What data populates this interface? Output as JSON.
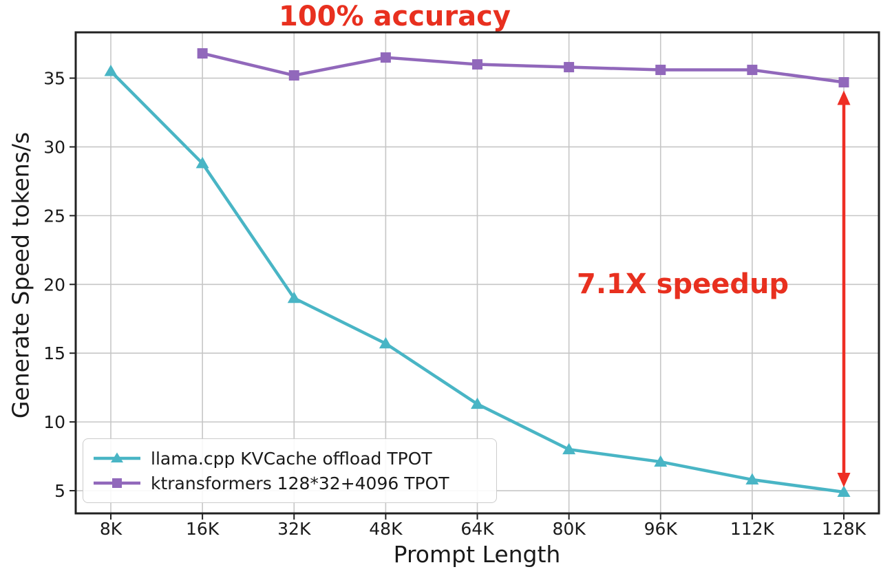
{
  "chart_data": {
    "type": "line",
    "title": "100% accuracy",
    "xlabel": "Prompt Length",
    "ylabel": "Generate Speed tokens/s",
    "categories": [
      "8K",
      "16K",
      "32K",
      "48K",
      "64K",
      "80K",
      "96K",
      "112K",
      "128K"
    ],
    "yticks": [
      5,
      10,
      15,
      20,
      25,
      30,
      35
    ],
    "ylim": [
      3.35,
      38.33
    ],
    "grid": true,
    "legend_position": "lower left",
    "series": [
      {
        "name": "llama.cpp KVCache offload TPOT",
        "color": "#49b5c5",
        "marker": "triangle",
        "values": [
          35.5,
          28.8,
          19.0,
          15.7,
          11.3,
          8.0,
          7.1,
          5.8,
          4.9
        ]
      },
      {
        "name": "ktransformers 128*32+4096 TPOT",
        "color": "#9168bb",
        "marker": "square",
        "values": [
          null,
          36.8,
          35.2,
          36.5,
          36.0,
          35.8,
          35.6,
          35.6,
          34.7
        ]
      }
    ],
    "annotations": [
      {
        "text": "100% accuracy",
        "color": "#e8301f",
        "position": "top-center"
      },
      {
        "text": "7.1X speedup",
        "color": "#e8301f",
        "position": "right-middle"
      },
      {
        "type": "double-arrow",
        "x_category": "128K",
        "from_value": 4.9,
        "to_value": 34.7,
        "color": "#ee2e24"
      }
    ],
    "colors": {
      "gridline": "#c6c6c6",
      "frame": "#222222",
      "tick_label": "#1a1a1a"
    }
  }
}
